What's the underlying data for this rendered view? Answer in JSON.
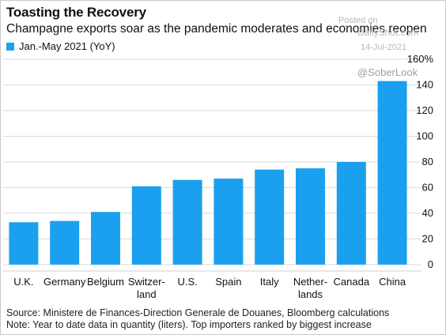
{
  "header": {
    "title": "Toasting the Recovery",
    "subtitle": "Champagne exports soar as the pandemic moderates and economies reopen"
  },
  "legend": {
    "label": "Jan.-May 2021 (YoY)",
    "color": "#1aa0ee"
  },
  "watermark": {
    "line1": "Posted on",
    "line2": "DailyShot.com",
    "line3": "14-Jul-2021",
    "line4": "@SoberLook"
  },
  "footer": {
    "source": "Source: Ministere de Finances-Direction Generale de Douanes, Bloomberg calculations",
    "note": "Note: Year to date data in quantity (liters). Top importers ranked by biggest increase"
  },
  "chart_data": {
    "type": "bar",
    "categories": [
      [
        "U.K."
      ],
      [
        "Germany"
      ],
      [
        "Belgium"
      ],
      [
        "Switzer-",
        "land"
      ],
      [
        "U.S."
      ],
      [
        "Spain"
      ],
      [
        "Italy"
      ],
      [
        "Nether-",
        "lands"
      ],
      [
        "Canada"
      ],
      [
        "China"
      ]
    ],
    "series": [
      {
        "name": "Jan.-May 2021 (YoY)",
        "values": [
          33,
          34,
          41,
          61,
          66,
          67,
          74,
          75,
          80,
          143
        ],
        "color": "#1aa0ee"
      }
    ],
    "ylim": [
      -5,
      160
    ],
    "yticks": [
      0,
      20,
      40,
      60,
      80,
      100,
      120,
      140,
      160
    ],
    "ytick_labels": [
      "0",
      "20",
      "40",
      "60",
      "80",
      "100",
      "120",
      "140",
      "160%"
    ],
    "grid": true,
    "legend_position": "top-left"
  }
}
